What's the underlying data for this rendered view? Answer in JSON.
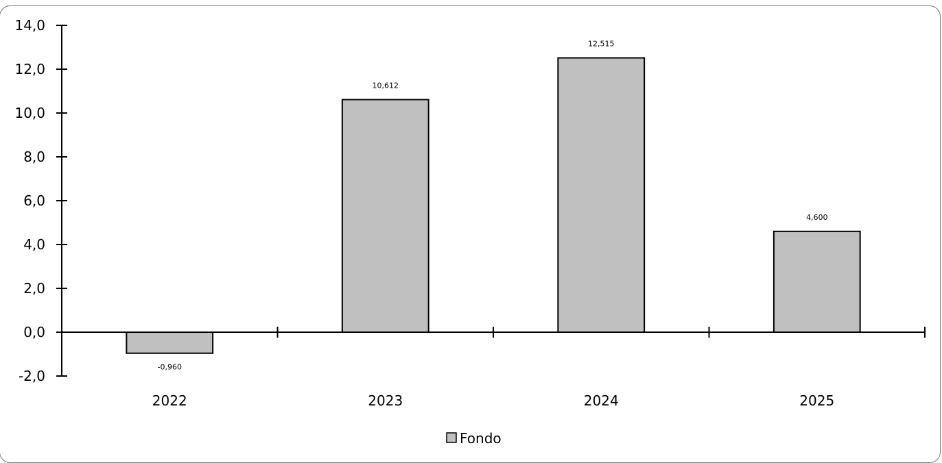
{
  "chart_data": {
    "type": "bar",
    "categories": [
      "2022",
      "2023",
      "2024",
      "2025"
    ],
    "series": [
      {
        "name": "Fondo",
        "values": [
          -0.96,
          10.612,
          12.515,
          4.6
        ]
      }
    ],
    "data_labels": [
      "-0,960",
      "10,612",
      "12,515",
      "4,600"
    ],
    "y_ticks": [
      "-2,0",
      "0,0",
      "2,0",
      "4,0",
      "6,0",
      "8,0",
      "10,0",
      "12,0",
      "14,0"
    ],
    "y_tick_values": [
      -2,
      0,
      2,
      4,
      6,
      8,
      10,
      12,
      14
    ],
    "ylim": [
      -2,
      14
    ],
    "title": "",
    "xlabel": "",
    "ylabel": "",
    "grid": false,
    "legend_position": "bottom-center",
    "colors": {
      "bar_fill": "#c0c0c0",
      "bar_stroke": "#000000",
      "axis": "#000000",
      "frame": "#777777"
    }
  },
  "legend": {
    "label": "Fondo"
  }
}
